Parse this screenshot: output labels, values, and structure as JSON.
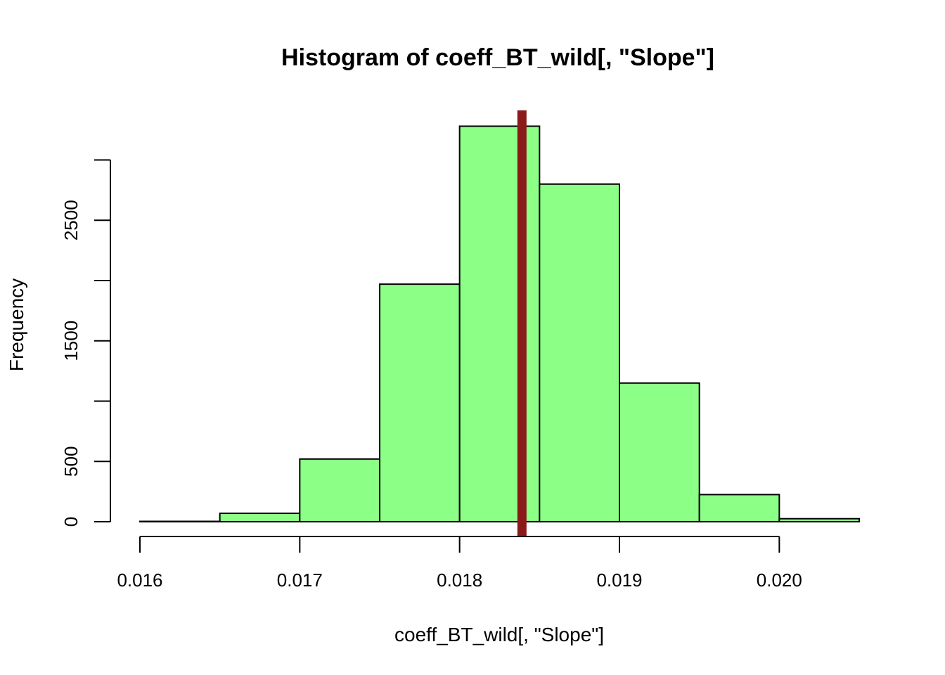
{
  "chart_data": {
    "type": "bar",
    "title": "Histogram of coeff_BT_wild[, \"Slope\"]",
    "xlabel": "coeff_BT_wild[, \"Slope\"]",
    "ylabel": "Frequency",
    "bins": [
      {
        "from": 0.016,
        "to": 0.0165,
        "count": 3
      },
      {
        "from": 0.0165,
        "to": 0.017,
        "count": 70
      },
      {
        "from": 0.017,
        "to": 0.0175,
        "count": 520
      },
      {
        "from": 0.0175,
        "to": 0.018,
        "count": 1970
      },
      {
        "from": 0.018,
        "to": 0.0185,
        "count": 3280
      },
      {
        "from": 0.0185,
        "to": 0.019,
        "count": 2800
      },
      {
        "from": 0.019,
        "to": 0.0195,
        "count": 1150
      },
      {
        "from": 0.0195,
        "to": 0.02,
        "count": 225
      },
      {
        "from": 0.02,
        "to": 0.0205,
        "count": 25
      }
    ],
    "x_ticks": [
      0.016,
      0.017,
      0.018,
      0.019,
      0.02
    ],
    "x_tick_labels": [
      "0.016",
      "0.017",
      "0.018",
      "0.019",
      "0.020"
    ],
    "y_ticks": [
      0,
      500,
      1000,
      1500,
      2000,
      2500,
      3000
    ],
    "y_tick_labels": [
      "0",
      "500",
      "",
      "1500",
      "",
      "2500",
      ""
    ],
    "xlim": [
      0.016,
      0.0205
    ],
    "ylim": [
      0,
      3300
    ],
    "reference_line": {
      "x": 0.01839,
      "color": "#8b1a1a"
    },
    "bar_color": "#8cff86",
    "grid": false,
    "legend": "none"
  }
}
